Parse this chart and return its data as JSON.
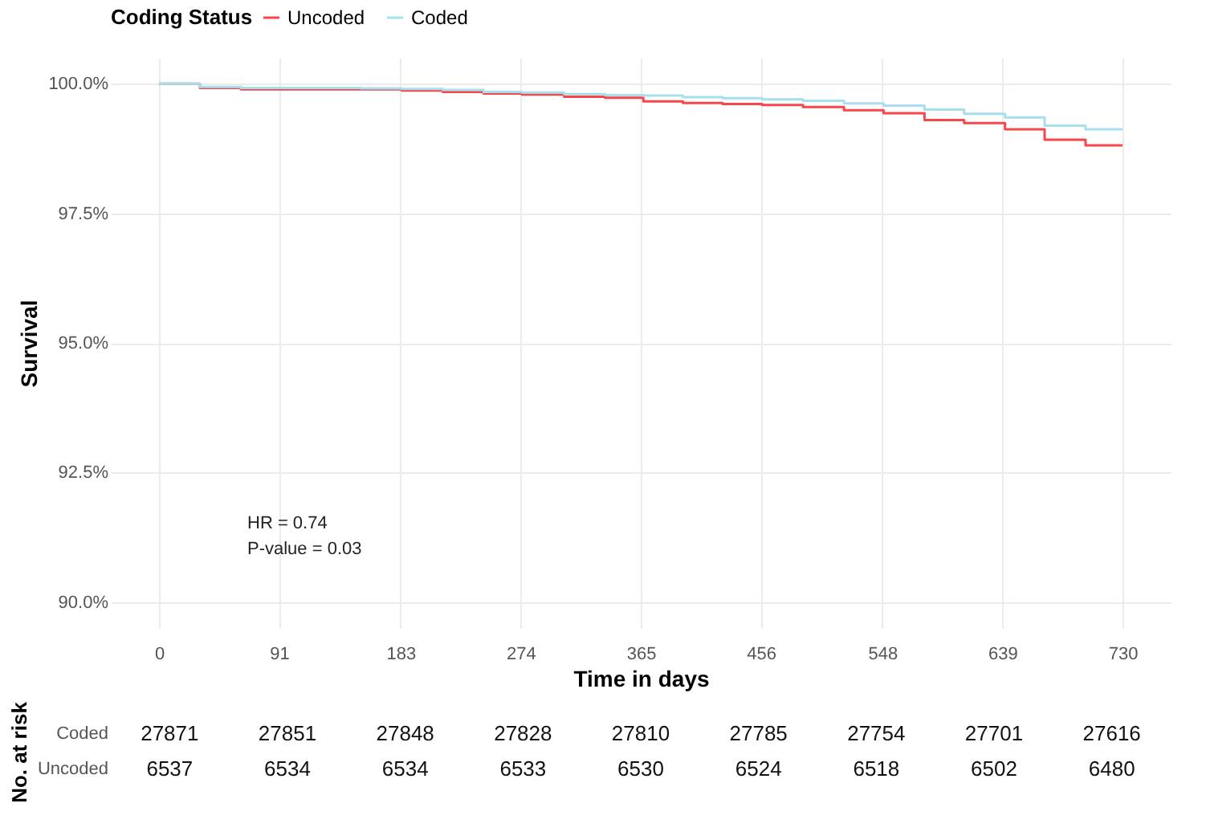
{
  "chart_data": [
    {
      "type": "step",
      "xlabel": "Time in days",
      "ylabel": "Survival",
      "legend_title": "Coding Status",
      "legend": "top",
      "grid": true,
      "marker": "none",
      "line_style": "solid",
      "x": [
        0,
        31,
        62,
        92,
        122,
        153,
        184,
        215,
        246,
        275,
        307,
        338,
        367,
        397,
        427,
        457,
        488,
        519,
        549,
        580,
        610,
        641,
        671,
        702,
        730
      ],
      "series": [
        {
          "name": "Uncoded",
          "color": "#f8474a",
          "values": [
            100,
            99.92,
            99.89,
            99.89,
            99.89,
            99.89,
            99.87,
            99.84,
            99.81,
            99.79,
            99.75,
            99.73,
            99.66,
            99.63,
            99.61,
            99.59,
            99.55,
            99.49,
            99.43,
            99.3,
            99.24,
            99.12,
            98.92,
            98.81,
            98.81
          ]
        },
        {
          "name": "Coded",
          "color": "#a6e0ee",
          "values": [
            100,
            99.94,
            99.92,
            99.92,
            99.92,
            99.91,
            99.9,
            99.88,
            99.84,
            99.83,
            99.8,
            99.78,
            99.77,
            99.74,
            99.72,
            99.7,
            99.67,
            99.62,
            99.58,
            99.5,
            99.42,
            99.35,
            99.19,
            99.12,
            99.12
          ]
        }
      ],
      "xlim": [
        -36.5,
        766.5
      ],
      "xticks": [
        0,
        91,
        183,
        274,
        365,
        456,
        548,
        639,
        730
      ],
      "ylim": [
        89.5,
        100.5
      ],
      "yticks": [
        {
          "value": 90,
          "label": "90.0%"
        },
        {
          "value": 92.5,
          "label": "92.5%"
        },
        {
          "value": 95,
          "label": "95.0%"
        },
        {
          "value": 97.5,
          "label": "97.5%"
        },
        {
          "value": 100,
          "label": "100.0%"
        }
      ],
      "annotations": [
        "HR = 0.74",
        "P-value = 0.03"
      ]
    },
    {
      "type": "heatmap",
      "ylabel": "No. at risk",
      "data_labels": true,
      "tick_labels": "y",
      "grid": false,
      "categories": [
        null,
        null,
        null,
        null,
        null,
        null,
        null,
        null,
        null
      ],
      "y_categories": [
        "Coded",
        "Uncoded"
      ],
      "cells": [
        [
          27871,
          27851,
          27848,
          27828,
          27810,
          27785,
          27754,
          27701,
          27616
        ],
        [
          6537,
          6534,
          6534,
          6533,
          6530,
          6524,
          6518,
          6502,
          6480
        ]
      ]
    }
  ]
}
